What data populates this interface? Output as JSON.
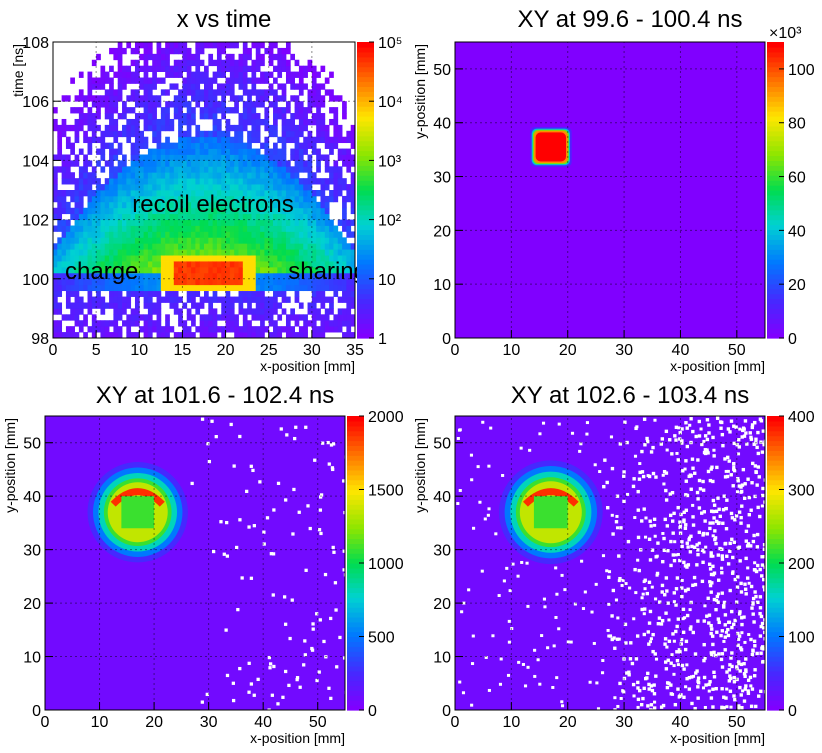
{
  "chart_data": [
    {
      "type": "heatmap",
      "title": "x vs time",
      "xlabel": "x-position  [mm]",
      "ylabel": "time  [ns]",
      "xlim": [
        0,
        35
      ],
      "ylim": [
        98,
        108
      ],
      "xticks": [
        "0",
        "5",
        "10",
        "15",
        "20",
        "25",
        "30",
        "35"
      ],
      "yticks": [
        "98",
        "100",
        "102",
        "104",
        "106",
        "108"
      ],
      "colorbar": {
        "scale": "log",
        "min": 1,
        "max": 100000,
        "ticks": [
          "1",
          "10",
          "10²",
          "10³",
          "10⁴",
          "10⁵"
        ]
      },
      "annotations": [
        "recoil electrons",
        "charge",
        "sharing"
      ],
      "features": [
        {
          "name": "primary charge band",
          "x": [
            14,
            22
          ],
          "t": [
            99.8,
            100.6
          ],
          "level": "high"
        },
        {
          "name": "charge sharing band",
          "x": [
            0,
            35
          ],
          "t": [
            99.6,
            100.3
          ],
          "level": "medium"
        },
        {
          "name": "recoil electron halo",
          "x": [
            5,
            32
          ],
          "t": [
            100.3,
            104.5
          ],
          "level": "medium"
        }
      ]
    },
    {
      "type": "heatmap",
      "title": "XY at 99.6 - 100.4 ns",
      "xlabel": "x-position  [mm]",
      "ylabel": "y-position  [mm]",
      "xlim": [
        0,
        55
      ],
      "ylim": [
        0,
        55
      ],
      "xticks": [
        "0",
        "10",
        "20",
        "30",
        "40",
        "50"
      ],
      "yticks": [
        "0",
        "10",
        "20",
        "30",
        "40",
        "50"
      ],
      "colorbar": {
        "scale": "linear",
        "min": 0,
        "max": 110000,
        "ticks": [
          "0",
          "20",
          "40",
          "60",
          "80",
          "100"
        ],
        "exponent": "×10³"
      },
      "features": [
        {
          "name": "pixel square",
          "center": [
            17,
            35.5
          ],
          "size": 6,
          "peak": 105000
        }
      ]
    },
    {
      "type": "heatmap",
      "title": "XY at 101.6 - 102.4 ns",
      "xlabel": "x-position  [mm]",
      "ylabel": "y-position  [mm]",
      "xlim": [
        0,
        55
      ],
      "ylim": [
        0,
        55
      ],
      "xticks": [
        "0",
        "10",
        "20",
        "30",
        "40",
        "50"
      ],
      "yticks": [
        "0",
        "10",
        "20",
        "30",
        "40",
        "50"
      ],
      "colorbar": {
        "scale": "linear",
        "min": 0,
        "max": 2000,
        "ticks": [
          "0",
          "500",
          "1000",
          "1500",
          "2000"
        ]
      },
      "features": [
        {
          "name": "recoil ring",
          "center": [
            17,
            37
          ],
          "radius": 9,
          "peak": 1900
        }
      ]
    },
    {
      "type": "heatmap",
      "title": "XY at 102.6 - 103.4 ns",
      "xlabel": "x-position  [mm]",
      "ylabel": "y-position  [mm]",
      "xlim": [
        0,
        55
      ],
      "ylim": [
        0,
        55
      ],
      "xticks": [
        "0",
        "10",
        "20",
        "30",
        "40",
        "50"
      ],
      "yticks": [
        "0",
        "10",
        "20",
        "30",
        "40",
        "50"
      ],
      "colorbar": {
        "scale": "linear",
        "min": 0,
        "max": 400,
        "ticks": [
          "0",
          "100",
          "200",
          "300",
          "400"
        ]
      },
      "features": [
        {
          "name": "recoil ring",
          "center": [
            17,
            37
          ],
          "radius": 9,
          "peak": 340
        }
      ]
    }
  ]
}
